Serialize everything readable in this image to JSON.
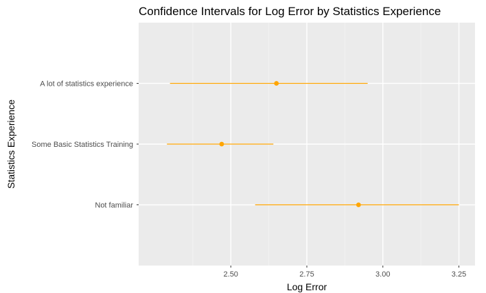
{
  "chart_data": {
    "type": "scatter",
    "title": "Confidence Intervals for Log Error by Statistics Experience",
    "xlabel": "Log Error",
    "ylabel": "Statistics Experience",
    "xlim": [
      2.197,
      3.303
    ],
    "x_ticks": [
      2.5,
      2.75,
      3.0,
      3.25
    ],
    "x_tick_labels": [
      "2.50",
      "2.75",
      "3.00",
      "3.25"
    ],
    "categories": [
      "A lot of statistics experience",
      "Some Basic Statistics Training",
      "Not familiar"
    ],
    "series": [
      {
        "points": [
          {
            "category": "A lot of statistics experience",
            "estimate": 2.65,
            "lower": 2.3,
            "upper": 2.95
          },
          {
            "category": "Some Basic Statistics Training",
            "estimate": 2.47,
            "lower": 2.29,
            "upper": 2.64
          },
          {
            "category": "Not familiar",
            "estimate": 2.92,
            "lower": 2.58,
            "upper": 3.25
          }
        ]
      }
    ],
    "grid": true,
    "colors": {
      "panel_background": "#ebebeb",
      "grid_major": "#ffffff",
      "grid_minor": "#f5f5f5",
      "point": "#FFA500",
      "interval": "#FFA500"
    }
  }
}
